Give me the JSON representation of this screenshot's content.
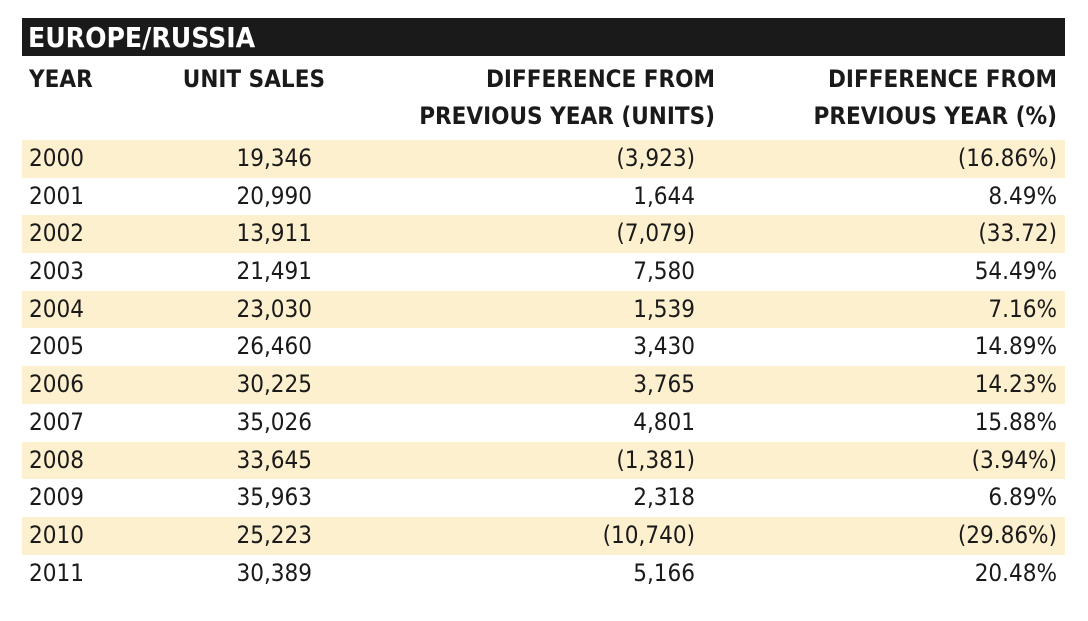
{
  "table": {
    "title": "EUROPE/RUSSIA",
    "headers": {
      "year": "YEAR",
      "unit_sales": "UNIT SALES",
      "diff_units_line1": "DIFFERENCE FROM",
      "diff_units_line2": "PREVIOUS YEAR (UNITS)",
      "diff_pct_line1": "DIFFERENCE FROM",
      "diff_pct_line2": "PREVIOUS YEAR (%)"
    },
    "rows": [
      {
        "year": "2000",
        "unit_sales": "19,346",
        "diff_units": "(3,923)",
        "diff_pct": "(16.86%)"
      },
      {
        "year": "2001",
        "unit_sales": "20,990",
        "diff_units": "1,644",
        "diff_pct": "8.49%"
      },
      {
        "year": "2002",
        "unit_sales": "13,911",
        "diff_units": "(7,079)",
        "diff_pct": "(33.72)"
      },
      {
        "year": "2003",
        "unit_sales": "21,491",
        "diff_units": "7,580",
        "diff_pct": "54.49%"
      },
      {
        "year": "2004",
        "unit_sales": "23,030",
        "diff_units": "1,539",
        "diff_pct": "7.16%"
      },
      {
        "year": "2005",
        "unit_sales": "26,460",
        "diff_units": "3,430",
        "diff_pct": "14.89%"
      },
      {
        "year": "2006",
        "unit_sales": "30,225",
        "diff_units": "3,765",
        "diff_pct": "14.23%"
      },
      {
        "year": "2007",
        "unit_sales": "35,026",
        "diff_units": "4,801",
        "diff_pct": "15.88%"
      },
      {
        "year": "2008",
        "unit_sales": "33,645",
        "diff_units": "(1,381)",
        "diff_pct": "(3.94%)"
      },
      {
        "year": "2009",
        "unit_sales": "35,963",
        "diff_units": "2,318",
        "diff_pct": "6.89%"
      },
      {
        "year": "2010",
        "unit_sales": "25,223",
        "diff_units": "(10,740)",
        "diff_pct": "(29.86%)"
      },
      {
        "year": "2011",
        "unit_sales": "30,389",
        "diff_units": "5,166",
        "diff_pct": "20.48%"
      }
    ]
  },
  "colors": {
    "title_bg": "#1a1a1a",
    "title_text": "#ffffff",
    "shaded_row": "#fdf0cf"
  }
}
